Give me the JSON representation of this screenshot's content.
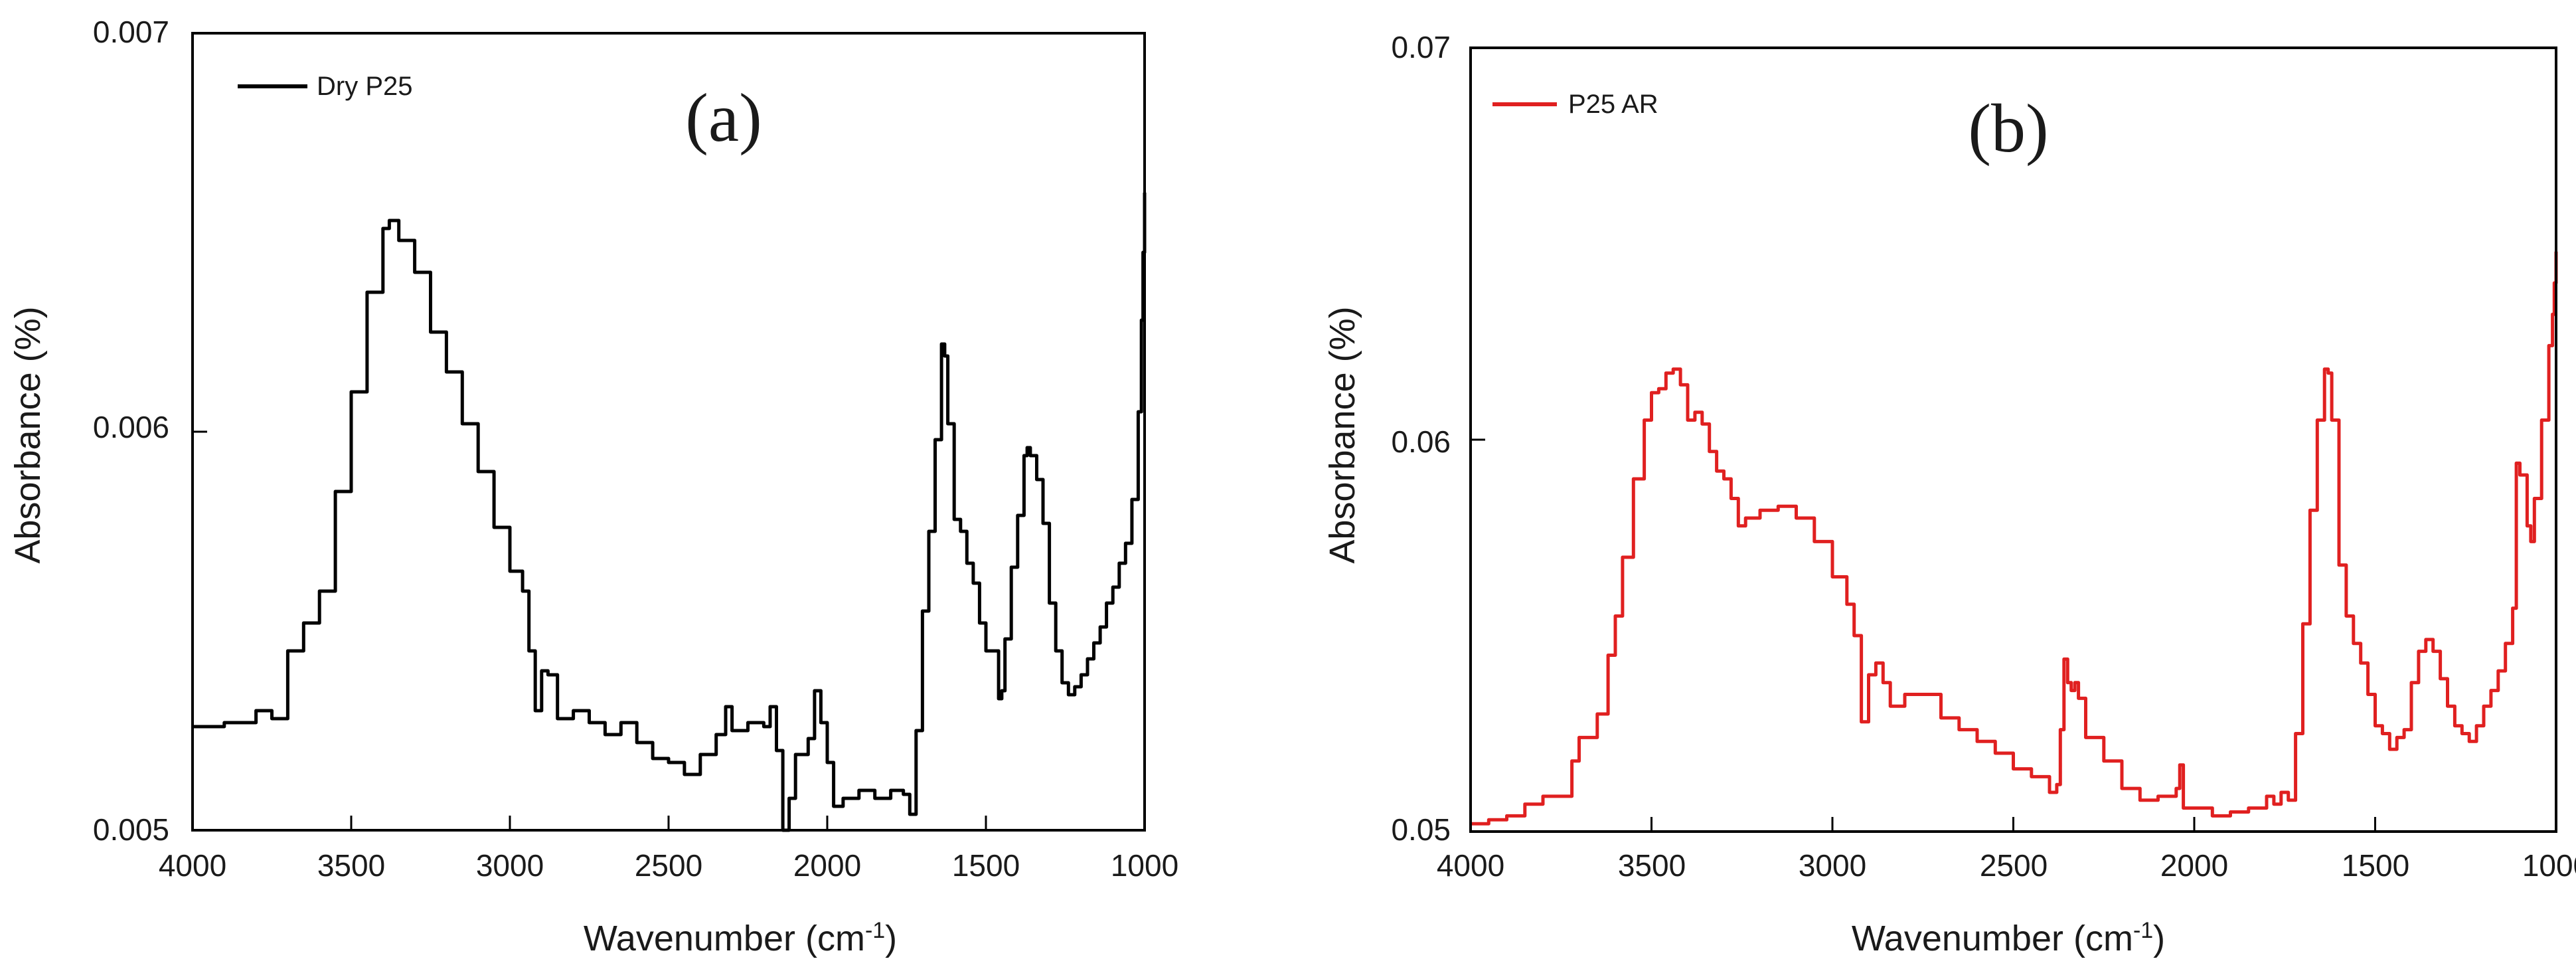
{
  "chart_data": [
    {
      "type": "line",
      "panel_label": "(a)",
      "xlabel": "Wavenumber (cm",
      "xlabel_sup": "-1",
      "xlabel_close": ")",
      "ylabel": "Absorbance (%)",
      "xlim": [
        4000,
        1000
      ],
      "ylim": [
        0.005,
        0.007
      ],
      "xticks": [
        4000,
        3500,
        3000,
        2500,
        2000,
        1500,
        1000
      ],
      "yticks": [
        0.005,
        0.006,
        0.007
      ],
      "ytick_labels": [
        "0.005",
        "0.006",
        "0.007"
      ],
      "legend_position": "top-left",
      "series": [
        {
          "name": "Dry P25",
          "color": "#000000",
          "x": [
            4000,
            3900,
            3800,
            3750,
            3700,
            3650,
            3600,
            3550,
            3500,
            3450,
            3400,
            3380,
            3350,
            3300,
            3250,
            3200,
            3150,
            3100,
            3050,
            3000,
            2960,
            2940,
            2920,
            2900,
            2880,
            2850,
            2800,
            2750,
            2700,
            2650,
            2600,
            2550,
            2500,
            2450,
            2400,
            2350,
            2320,
            2300,
            2250,
            2200,
            2180,
            2160,
            2140,
            2120,
            2100,
            2060,
            2040,
            2020,
            2000,
            1980,
            1950,
            1900,
            1850,
            1800,
            1760,
            1740,
            1720,
            1700,
            1680,
            1660,
            1640,
            1630,
            1620,
            1600,
            1580,
            1560,
            1540,
            1520,
            1500,
            1480,
            1460,
            1450,
            1440,
            1420,
            1400,
            1380,
            1370,
            1360,
            1340,
            1320,
            1300,
            1280,
            1260,
            1240,
            1220,
            1200,
            1180,
            1160,
            1140,
            1120,
            1100,
            1080,
            1060,
            1040,
            1020,
            1010,
            1005,
            1000
          ],
          "y": [
            0.00526,
            0.00527,
            0.0053,
            0.00528,
            0.00545,
            0.00552,
            0.0056,
            0.00585,
            0.0061,
            0.00635,
            0.00651,
            0.00653,
            0.00648,
            0.0064,
            0.00625,
            0.00615,
            0.00602,
            0.0059,
            0.00576,
            0.00565,
            0.0056,
            0.00545,
            0.0053,
            0.0054,
            0.00539,
            0.00528,
            0.0053,
            0.00527,
            0.00524,
            0.00527,
            0.00522,
            0.00518,
            0.00517,
            0.00514,
            0.00519,
            0.00524,
            0.00531,
            0.00525,
            0.00527,
            0.00526,
            0.00531,
            0.0052,
            0.005,
            0.00508,
            0.00519,
            0.00523,
            0.00535,
            0.00527,
            0.00517,
            0.00506,
            0.00508,
            0.0051,
            0.00508,
            0.0051,
            0.00509,
            0.00504,
            0.00525,
            0.00555,
            0.00575,
            0.00598,
            0.00622,
            0.00619,
            0.00602,
            0.00578,
            0.00575,
            0.00567,
            0.00562,
            0.00552,
            0.00545,
            0.00545,
            0.00533,
            0.00535,
            0.00548,
            0.00566,
            0.00579,
            0.00594,
            0.00596,
            0.00594,
            0.00588,
            0.00577,
            0.00557,
            0.00545,
            0.00537,
            0.00534,
            0.00536,
            0.00539,
            0.00543,
            0.00547,
            0.00551,
            0.00557,
            0.00561,
            0.00567,
            0.00572,
            0.00583,
            0.00605,
            0.00628,
            0.00645,
            0.0066
          ]
        }
      ]
    },
    {
      "type": "line",
      "panel_label": "(b)",
      "xlabel": "Wavenumber (cm",
      "xlabel_sup": "-1",
      "xlabel_close": ")",
      "ylabel": "Absorbance (%)",
      "xlim": [
        4000,
        1000
      ],
      "ylim": [
        0.05,
        0.07
      ],
      "xticks": [
        4000,
        3500,
        3000,
        2500,
        2000,
        1500,
        1000
      ],
      "yticks": [
        0.05,
        0.06,
        0.07
      ],
      "ytick_labels": [
        "0.05",
        "0.06",
        "0.07"
      ],
      "legend_position": "top-left",
      "series": [
        {
          "name": "P25 AR",
          "color": "#e02020",
          "x": [
            4000,
            3950,
            3900,
            3850,
            3800,
            3760,
            3720,
            3700,
            3650,
            3620,
            3600,
            3580,
            3550,
            3520,
            3500,
            3480,
            3460,
            3440,
            3420,
            3400,
            3380,
            3360,
            3340,
            3320,
            3300,
            3280,
            3260,
            3240,
            3200,
            3150,
            3100,
            3050,
            3000,
            2960,
            2940,
            2920,
            2900,
            2880,
            2860,
            2840,
            2800,
            2700,
            2650,
            2600,
            2550,
            2500,
            2450,
            2400,
            2380,
            2370,
            2360,
            2350,
            2340,
            2330,
            2320,
            2300,
            2250,
            2200,
            2150,
            2100,
            2050,
            2040,
            2030,
            2000,
            1950,
            1900,
            1850,
            1800,
            1780,
            1760,
            1740,
            1720,
            1700,
            1680,
            1660,
            1640,
            1630,
            1620,
            1600,
            1580,
            1560,
            1540,
            1520,
            1500,
            1480,
            1460,
            1440,
            1420,
            1400,
            1380,
            1360,
            1340,
            1320,
            1300,
            1280,
            1260,
            1240,
            1220,
            1200,
            1180,
            1160,
            1140,
            1120,
            1110,
            1100,
            1080,
            1070,
            1060,
            1040,
            1020,
            1010,
            1005,
            1000
          ],
          "y": [
            0.0502,
            0.0503,
            0.0504,
            0.0507,
            0.0509,
            0.0509,
            0.0518,
            0.0524,
            0.053,
            0.0545,
            0.0555,
            0.057,
            0.059,
            0.0605,
            0.0612,
            0.0613,
            0.0617,
            0.0618,
            0.0614,
            0.0605,
            0.0607,
            0.0604,
            0.0597,
            0.0592,
            0.059,
            0.0585,
            0.0578,
            0.058,
            0.0582,
            0.0583,
            0.058,
            0.0574,
            0.0565,
            0.0558,
            0.055,
            0.0528,
            0.054,
            0.0543,
            0.0538,
            0.0532,
            0.0535,
            0.0529,
            0.0526,
            0.0523,
            0.052,
            0.0516,
            0.0514,
            0.051,
            0.0512,
            0.0526,
            0.0544,
            0.0538,
            0.0536,
            0.0538,
            0.0534,
            0.0524,
            0.0518,
            0.0511,
            0.0508,
            0.0509,
            0.0511,
            0.0517,
            0.0506,
            0.0506,
            0.0504,
            0.0505,
            0.0506,
            0.0509,
            0.0507,
            0.051,
            0.0508,
            0.0525,
            0.0553,
            0.0582,
            0.0605,
            0.0618,
            0.0617,
            0.0605,
            0.0568,
            0.0555,
            0.0548,
            0.0543,
            0.0535,
            0.0527,
            0.0525,
            0.0521,
            0.0524,
            0.0526,
            0.0538,
            0.0546,
            0.0549,
            0.0546,
            0.0539,
            0.0532,
            0.0527,
            0.0525,
            0.0523,
            0.0527,
            0.0532,
            0.0536,
            0.0541,
            0.0548,
            0.0557,
            0.0594,
            0.0591,
            0.0578,
            0.0574,
            0.0585,
            0.0605,
            0.0624,
            0.0632,
            0.064,
            0.0648
          ]
        }
      ]
    }
  ]
}
